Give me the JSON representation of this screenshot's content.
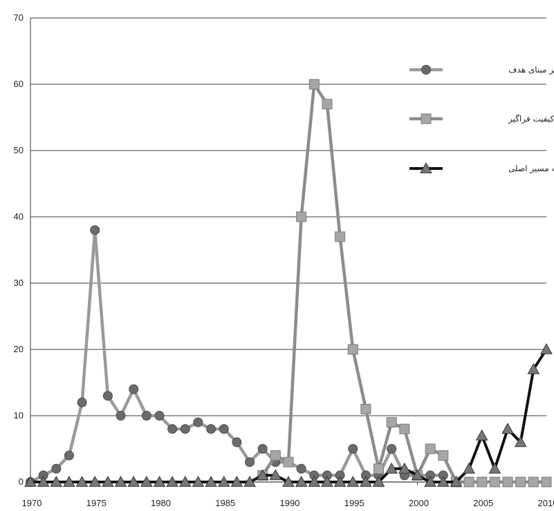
{
  "chart_data": {
    "type": "line",
    "title": "",
    "xlabel": "",
    "ylabel": "",
    "xlim": [
      1970,
      2010
    ],
    "ylim": [
      0,
      70
    ],
    "x_ticks": [
      1970,
      1975,
      1980,
      1985,
      1990,
      1995,
      2000,
      2005,
      2010
    ],
    "y_ticks": [
      0,
      10,
      20,
      30,
      40,
      50,
      60,
      70
    ],
    "grid": "horizontal",
    "legend_position": "right",
    "x": [
      1970,
      1971,
      1972,
      1973,
      1974,
      1975,
      1976,
      1977,
      1978,
      1979,
      1980,
      1981,
      1982,
      1983,
      1984,
      1985,
      1986,
      1987,
      1988,
      1989,
      1990,
      1991,
      1992,
      1993,
      1994,
      1995,
      1996,
      1997,
      1998,
      1999,
      2000,
      2001,
      2002,
      2003,
      2004,
      2005,
      2006,
      2007,
      2008,
      2009,
      2010
    ],
    "series": [
      {
        "name": "مدیریت بر مبنای هدف",
        "marker": "circle",
        "color": "#9a9a9a",
        "values": [
          0,
          1,
          2,
          4,
          12,
          38,
          13,
          10,
          14,
          10,
          10,
          8,
          8,
          9,
          8,
          8,
          6,
          3,
          5,
          3,
          3,
          2,
          1,
          1,
          1,
          5,
          1,
          1,
          5,
          1,
          1,
          1,
          1,
          null,
          null,
          null,
          null,
          null,
          null,
          null,
          null
        ]
      },
      {
        "name": "مدیریت کیفیت فراگیر",
        "marker": "square",
        "color": "#8c8c8c",
        "values": [
          null,
          null,
          null,
          null,
          null,
          null,
          null,
          null,
          null,
          null,
          null,
          null,
          null,
          null,
          null,
          null,
          null,
          null,
          1,
          4,
          3,
          40,
          60,
          57,
          37,
          20,
          11,
          2,
          9,
          8,
          1,
          5,
          4,
          0,
          0,
          0,
          0,
          0,
          0,
          0,
          0
        ]
      },
      {
        "name": "مدیریت بازگشت به مسیر اصلی",
        "marker": "triangle",
        "color": "#111111",
        "values": [
          0,
          0,
          0,
          0,
          0,
          0,
          0,
          0,
          0,
          0,
          0,
          0,
          0,
          0,
          0,
          0,
          0,
          0,
          1,
          1,
          0,
          0,
          0,
          0,
          0,
          0,
          0,
          0,
          2,
          2,
          1,
          0,
          0,
          0,
          2,
          7,
          2,
          8,
          6,
          17,
          20
        ]
      }
    ]
  }
}
